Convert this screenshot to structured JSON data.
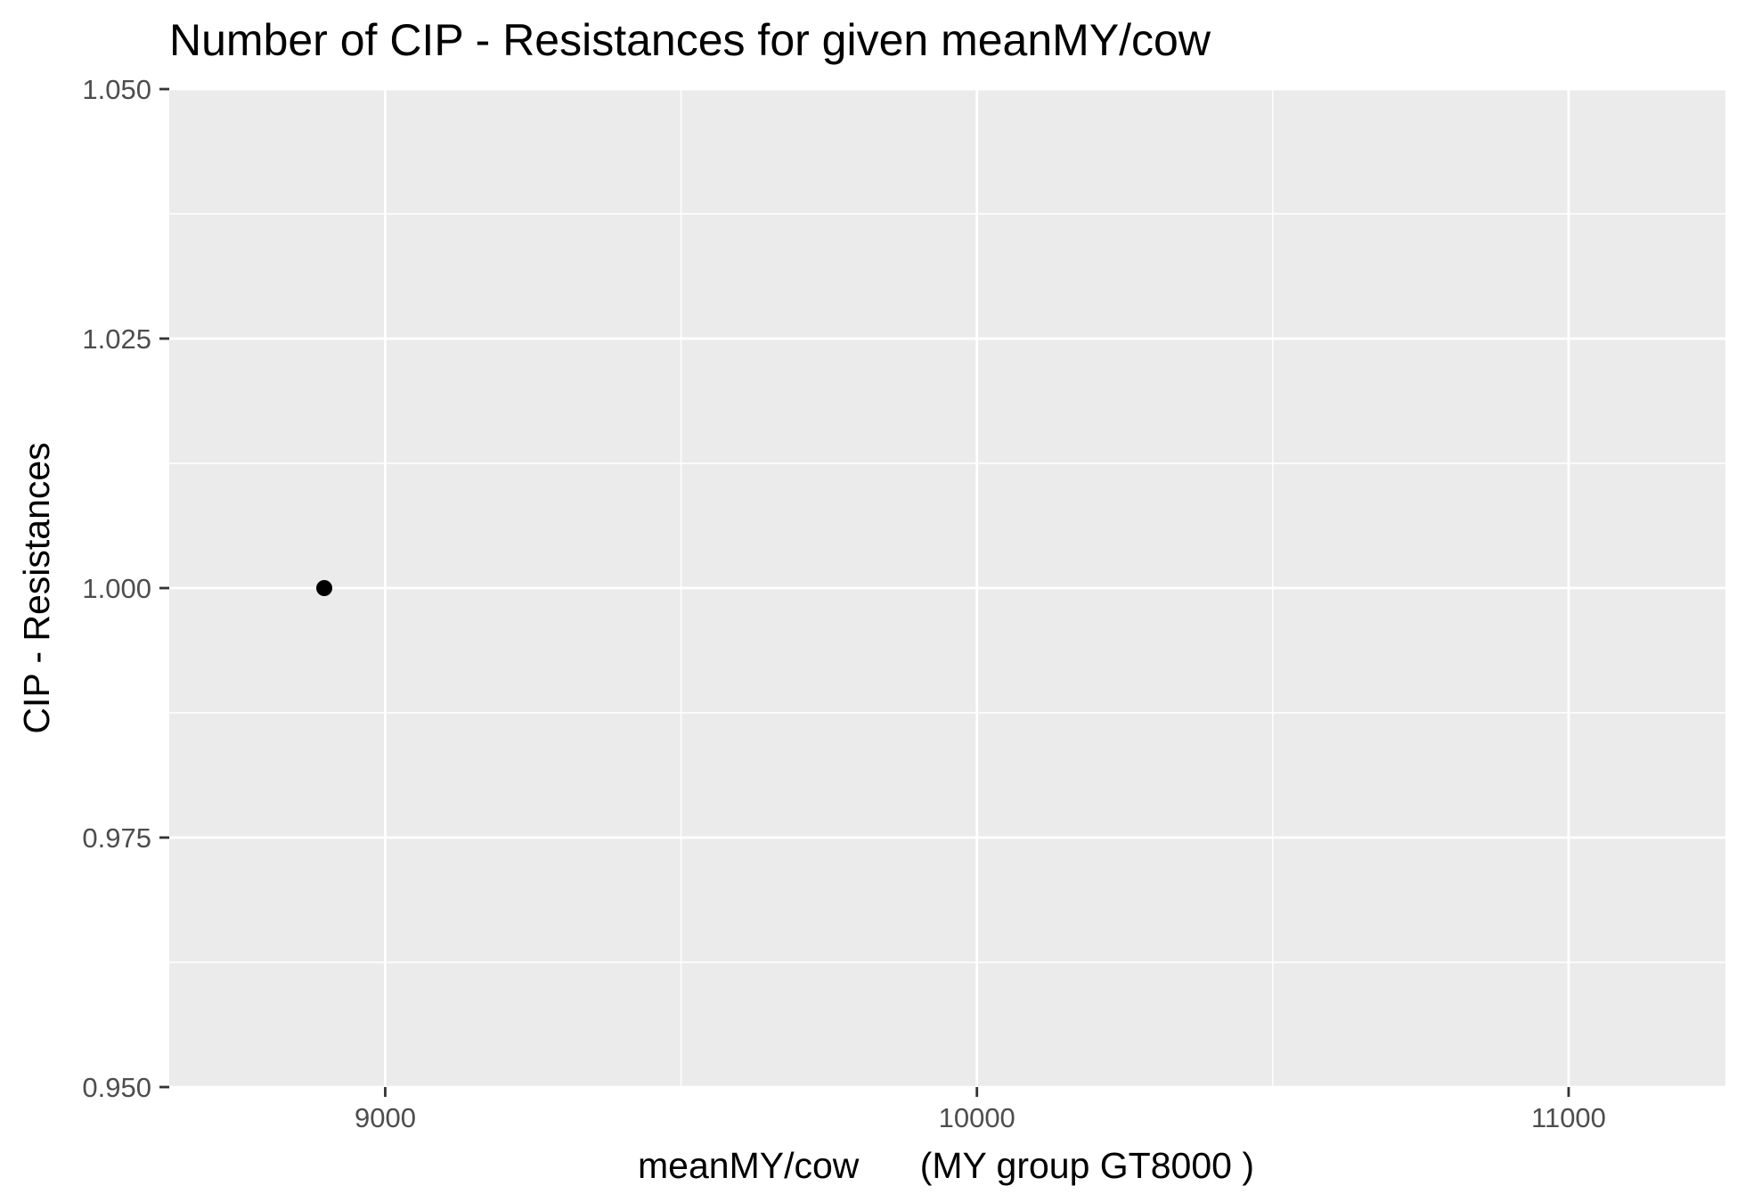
{
  "chart_data": {
    "type": "scatter",
    "title": "Number of CIP - Resistances for given meanMY/cow",
    "xlabel": "meanMY/cow      (MY group GT8000 )",
    "ylabel": "CIP - Resistances",
    "xlim": [
      8635,
      11265
    ],
    "ylim": [
      0.95,
      1.05
    ],
    "x_ticks": [
      9000,
      10000,
      11000
    ],
    "x_tick_labels": [
      "9000",
      "10000",
      "11000"
    ],
    "x_minor_ticks": [
      8500,
      9500,
      10500
    ],
    "y_ticks": [
      0.95,
      0.975,
      1.0,
      1.025,
      1.05
    ],
    "y_tick_labels": [
      "0.950",
      "0.975",
      "1.000",
      "1.025",
      "1.050"
    ],
    "y_minor_ticks": [
      0.9625,
      0.9875,
      1.0125,
      1.0375
    ],
    "grid": true,
    "panel_color": "#ebebeb",
    "grid_color": "#ffffff",
    "point_color": "#000000",
    "points": [
      {
        "x": 8897,
        "y": 1.0
      }
    ]
  }
}
